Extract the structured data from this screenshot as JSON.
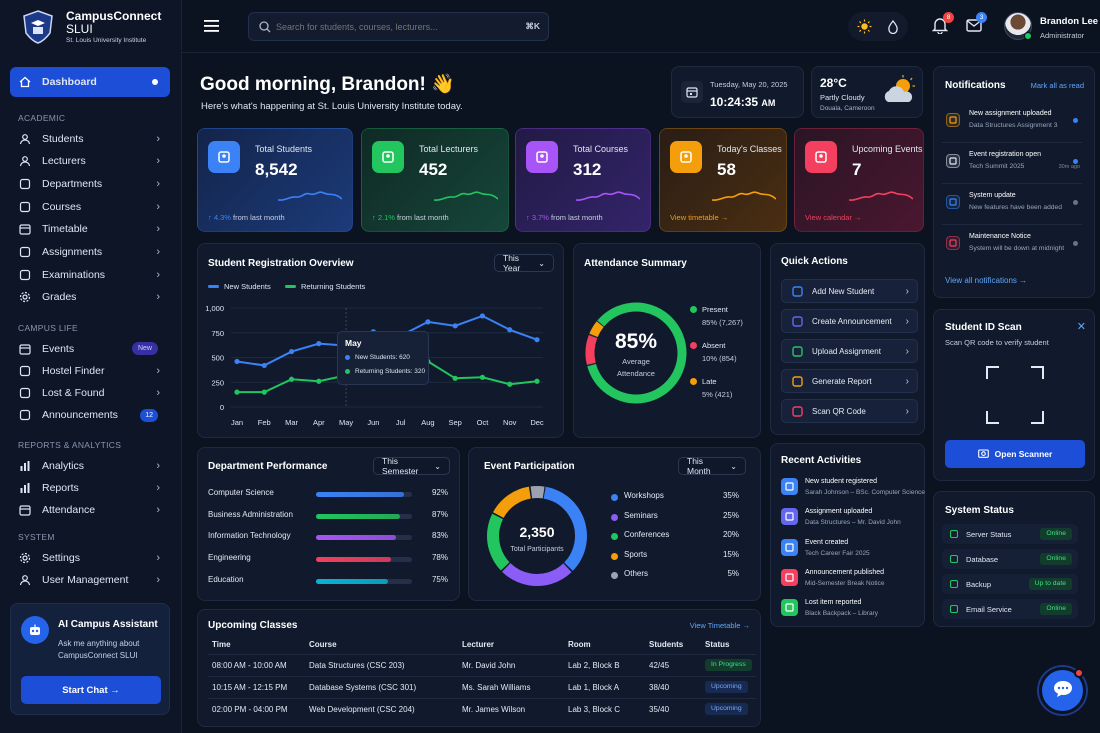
{
  "brand": {
    "name": "CampusConnect",
    "name2": "SLUI",
    "subtitle": "St. Louis University Institute"
  },
  "search": {
    "placeholder": "Search for students, courses, lecturers...",
    "shortcut": "⌘K"
  },
  "header": {
    "notif_count": "8",
    "msg_count": "3",
    "user_name": "Brandon Lee",
    "user_role": "Administrator"
  },
  "sidebar": {
    "dashboard": "Dashboard",
    "sec_academic": "ACADEMIC",
    "academic": [
      "Students",
      "Lecturers",
      "Departments",
      "Courses",
      "Timetable",
      "Assignments",
      "Examinations",
      "Grades"
    ],
    "sec_campus": "CAMPUS LIFE",
    "campus": [
      "Events",
      "Hostel Finder",
      "Lost & Found",
      "Announcements"
    ],
    "events_badge": "New",
    "announcements_badge": "12",
    "sec_reports": "REPORTS & ANALYTICS",
    "reports": [
      "Analytics",
      "Reports",
      "Attendance"
    ],
    "sec_system": "SYSTEM",
    "system": [
      "Settings",
      "User Management"
    ],
    "assistant": {
      "title": "AI Campus Assistant",
      "desc1": "Ask me anything about",
      "desc2": "CampusConnect SLUI",
      "cta": "Start Chat →"
    }
  },
  "welcome": {
    "greeting": "Good morning, Brandon! 👋",
    "sub": "Here's what's happening at St. Louis University Institute today."
  },
  "datetime": {
    "date": "Tuesday, May 20, 2025",
    "time": "10:24:35",
    "ampm": "AM"
  },
  "weather": {
    "temp": "28°C",
    "cond": "Partly Cloudy",
    "loc": "Douala, Cameroon"
  },
  "stats": [
    {
      "label": "Total Students",
      "value": "8,542",
      "trend": "↑ 4.3%",
      "note": "from last month",
      "color": "#3b82f6"
    },
    {
      "label": "Total Lecturers",
      "value": "452",
      "trend": "↑ 2.1%",
      "note": "from last month",
      "color": "#22c55e"
    },
    {
      "label": "Total Courses",
      "value": "312",
      "trend": "↑ 3.7%",
      "note": "from last month",
      "color": "#a855f7"
    },
    {
      "label": "Today's Classes",
      "value": "58",
      "link": "View timetable →",
      "color": "#f59e0b"
    },
    {
      "label": "Upcoming Events",
      "value": "7",
      "link": "View calendar →",
      "color": "#f43f5e"
    }
  ],
  "registration": {
    "title": "Student Registration Overview",
    "filter": "This Year",
    "legend_new": "New Students",
    "legend_ret": "Returning Students",
    "tooltip": {
      "month": "May",
      "new": "New Students: 620",
      "ret": "Returning Students: 320"
    }
  },
  "chart_data": {
    "type": "line",
    "categories": [
      "Jan",
      "Feb",
      "Mar",
      "Apr",
      "May",
      "Jun",
      "Jul",
      "Aug",
      "Sep",
      "Oct",
      "Nov",
      "Dec"
    ],
    "series": [
      {
        "name": "New Students",
        "values": [
          460,
          420,
          560,
          640,
          620,
          760,
          720,
          860,
          820,
          920,
          780,
          680
        ],
        "color": "#3b82f6"
      },
      {
        "name": "Returning Students",
        "values": [
          150,
          150,
          280,
          260,
          320,
          420,
          420,
          460,
          290,
          300,
          230,
          260
        ],
        "color": "#22c55e"
      }
    ],
    "yticks": [
      "0",
      "250",
      "500",
      "750",
      "1,000"
    ],
    "ylim": [
      0,
      1000
    ]
  },
  "attendance": {
    "title": "Attendance Summary",
    "pct": "85%",
    "label1": "Average",
    "label2": "Attendance",
    "items": [
      {
        "name": "Present",
        "value": "85% (7,267)",
        "color": "#22c55e",
        "frac": 0.85
      },
      {
        "name": "Absent",
        "value": "10% (854)",
        "color": "#f43f5e",
        "frac": 0.1
      },
      {
        "name": "Late",
        "value": "5% (421)",
        "color": "#f59e0b",
        "frac": 0.05
      }
    ]
  },
  "quick_actions": {
    "title": "Quick Actions",
    "items": [
      "Add New Student",
      "Create Announcement",
      "Upload Assignment",
      "Generate Report",
      "Scan QR Code"
    ]
  },
  "notifications": {
    "title": "Notifications",
    "mark": "Mark all as read",
    "view_all": "View all notifications →",
    "items": [
      {
        "title": "New assignment uploaded",
        "sub": "Data Structures Assignment 3",
        "time": ""
      },
      {
        "title": "Event registration open",
        "sub": "Tech Summit 2025",
        "time": "30m ago"
      },
      {
        "title": "System update",
        "sub": "New features have been added",
        "time": ""
      },
      {
        "title": "Maintenance Notice",
        "sub": "System will be down at midnight",
        "time": ""
      }
    ]
  },
  "scan": {
    "title": "Student ID Scan",
    "desc": "Scan QR code to verify student",
    "button": "Open Scanner"
  },
  "dept": {
    "title": "Department Performance",
    "filter": "This Semester",
    "rows": [
      {
        "name": "Computer Science",
        "pct": "92%",
        "value": 0.92,
        "color": "#3b82f6"
      },
      {
        "name": "Business Administration",
        "pct": "87%",
        "value": 0.87,
        "color": "#22c55e"
      },
      {
        "name": "Information Technology",
        "pct": "83%",
        "value": 0.83,
        "color": "#a855f7"
      },
      {
        "name": "Engineering",
        "pct": "78%",
        "value": 0.78,
        "color": "#f43f5e"
      },
      {
        "name": "Education",
        "pct": "75%",
        "value": 0.75,
        "color": "#06b6d4"
      }
    ]
  },
  "events": {
    "title": "Event Participation",
    "filter": "This Month",
    "total": "2,350",
    "total_label": "Total Participants",
    "rows": [
      {
        "name": "Workshops",
        "pct": "35%",
        "value": 35,
        "color": "#3b82f6"
      },
      {
        "name": "Seminars",
        "pct": "25%",
        "value": 25,
        "color": "#8b5cf6"
      },
      {
        "name": "Conferences",
        "pct": "20%",
        "value": 20,
        "color": "#22c55e"
      },
      {
        "name": "Sports",
        "pct": "15%",
        "value": 15,
        "color": "#f59e0b"
      },
      {
        "name": "Others",
        "pct": "5%",
        "value": 5,
        "color": "#9ca3af"
      }
    ]
  },
  "recent": {
    "title": "Recent Activities",
    "items": [
      {
        "title": "New student registered",
        "sub": "Sarah Johnson – BSc. Computer Science",
        "color": "#3b82f6"
      },
      {
        "title": "Assignment uploaded",
        "sub": "Data Structures – Mr. David John",
        "color": "#6366f1"
      },
      {
        "title": "Event created",
        "sub": "Tech Career Fair 2025",
        "color": "#3b82f6"
      },
      {
        "title": "Announcement published",
        "sub": "Mid-Semester Break Notice",
        "color": "#f43f5e"
      },
      {
        "title": "Lost item reported",
        "sub": "Black Backpack – Library",
        "color": "#22c55e"
      }
    ]
  },
  "system_status": {
    "title": "System Status",
    "items": [
      {
        "name": "Server Status",
        "status": "Online"
      },
      {
        "name": "Database",
        "status": "Online"
      },
      {
        "name": "Backup",
        "status": "Up to date"
      },
      {
        "name": "Email Service",
        "status": "Online"
      }
    ]
  },
  "classes": {
    "title": "Upcoming Classes",
    "link": "View Timetable →",
    "headers": [
      "Time",
      "Course",
      "Lecturer",
      "Room",
      "Students",
      "Status"
    ],
    "rows": [
      {
        "time": "08:00 AM - 10:00 AM",
        "course": "Data Structures (CSC 203)",
        "lecturer": "Mr. David John",
        "room": "Lab 2, Block B",
        "students": "42/45",
        "status": "In Progress"
      },
      {
        "time": "10:15 AM - 12:15 PM",
        "course": "Database Systems (CSC 301)",
        "lecturer": "Ms. Sarah Williams",
        "room": "Lab 1, Block A",
        "students": "38/40",
        "status": "Upcoming"
      },
      {
        "time": "02:00 PM - 04:00 PM",
        "course": "Web Development (CSC 204)",
        "lecturer": "Mr. James Wilson",
        "room": "Lab 3, Block C",
        "students": "35/40",
        "status": "Upcoming"
      }
    ]
  }
}
